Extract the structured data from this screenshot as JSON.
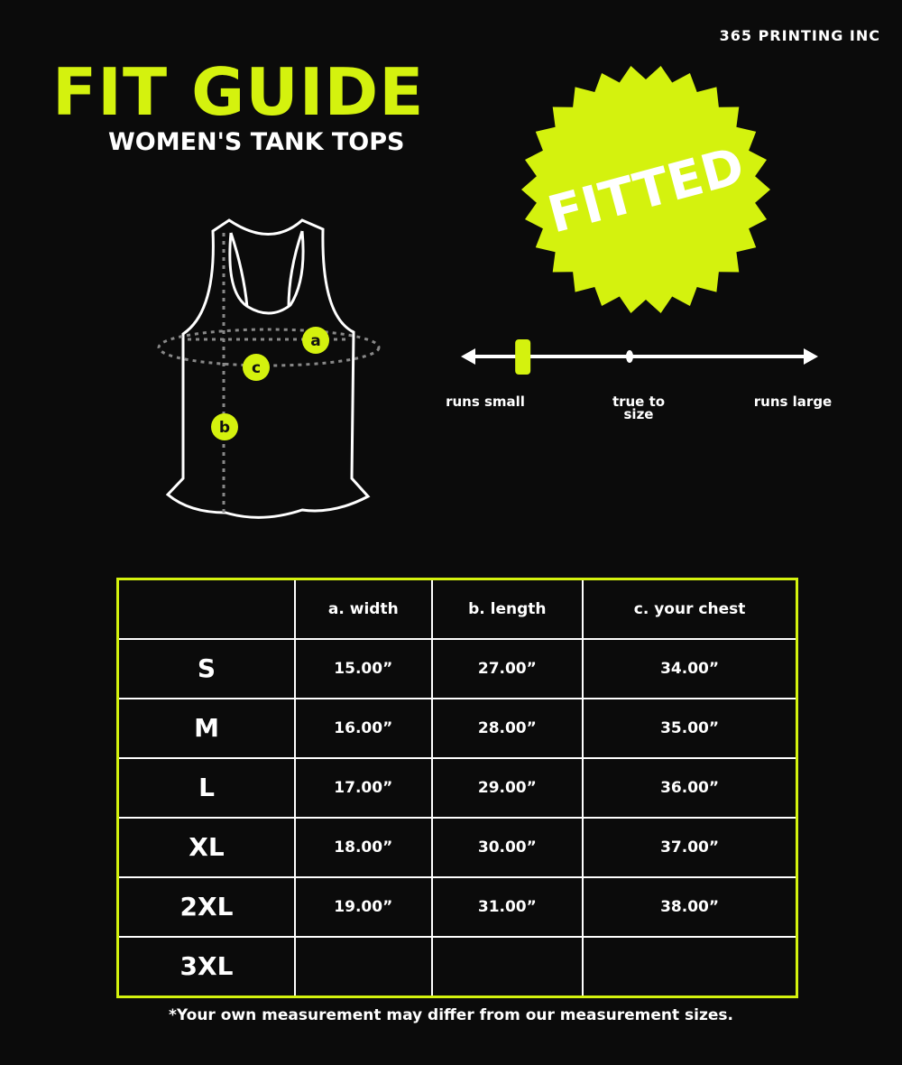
{
  "brand": "365 PRINTING INC",
  "title": "FIT GUIDE",
  "subtitle": "WOMEN'S TANK TOPS",
  "colors": {
    "accent": "#d4f20e",
    "background": "#0b0b0b"
  },
  "badge": "FITTED",
  "diagram": {
    "markers": [
      "a",
      "b",
      "c"
    ]
  },
  "fit_scale": {
    "left": "runs small",
    "middle": "true to size",
    "right": "runs large",
    "indicator_fraction": 0.16
  },
  "table": {
    "headers": [
      "",
      "a. width",
      "b. length",
      "c. your chest"
    ],
    "rows": [
      [
        "S",
        "15.00”",
        "27.00”",
        "34.00”"
      ],
      [
        "M",
        "16.00”",
        "28.00”",
        "35.00”"
      ],
      [
        "L",
        "17.00”",
        "29.00”",
        "36.00”"
      ],
      [
        "XL",
        "18.00”",
        "30.00”",
        "37.00”"
      ],
      [
        "2XL",
        "19.00”",
        "31.00”",
        "38.00”"
      ],
      [
        "3XL",
        "",
        "",
        ""
      ]
    ]
  },
  "note": "*Your own measurement may differ from our measurement sizes."
}
